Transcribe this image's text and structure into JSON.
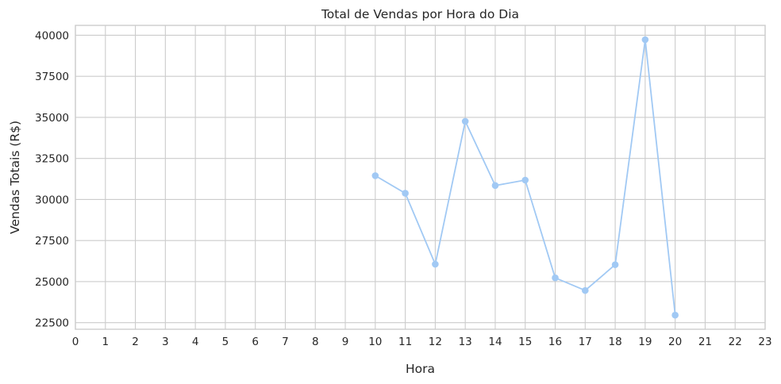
{
  "chart_data": {
    "type": "line",
    "title": "Total de Vendas por Hora do Dia",
    "xlabel": "Hora",
    "ylabel": "Vendas Totais (R$)",
    "x_ticks": [
      "0",
      "1",
      "2",
      "3",
      "4",
      "5",
      "6",
      "7",
      "8",
      "9",
      "10",
      "11",
      "12",
      "13",
      "14",
      "15",
      "16",
      "17",
      "18",
      "19",
      "20",
      "21",
      "22",
      "23"
    ],
    "y_ticks": [
      "22500",
      "25000",
      "27500",
      "30000",
      "32500",
      "35000",
      "37500",
      "40000"
    ],
    "xlim": [
      0,
      23
    ],
    "ylim": [
      22100,
      40600
    ],
    "grid": true,
    "marker": "circle",
    "colors": {
      "line": "#a1c9f4",
      "grid": "#cccccc",
      "text": "#262626"
    },
    "series": [
      {
        "x": [
          10,
          11,
          12,
          13,
          14,
          15,
          16,
          17,
          18,
          19,
          20
        ],
        "y": [
          31450,
          30380,
          26060,
          34760,
          30850,
          31180,
          25230,
          24460,
          26030,
          39730,
          22960
        ]
      }
    ]
  }
}
